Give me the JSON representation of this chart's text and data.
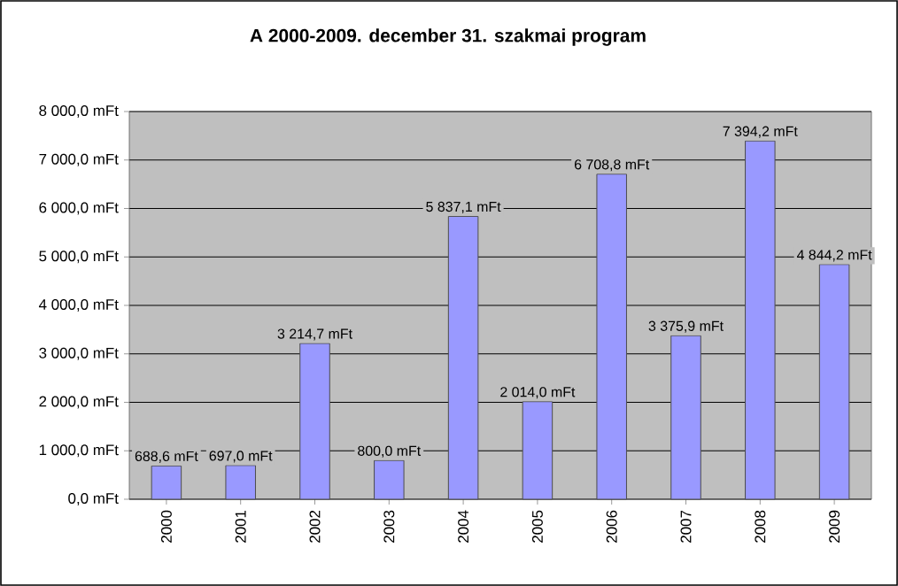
{
  "chart_data": {
    "type": "bar",
    "title": "A 2000-2009. december 31. szakmai program",
    "categories": [
      "2000",
      "2001",
      "2002",
      "2003",
      "2004",
      "2005",
      "2006",
      "2007",
      "2008",
      "2009"
    ],
    "values": [
      688.6,
      697.0,
      3214.7,
      800.0,
      5837.1,
      2014.0,
      6708.8,
      3375.9,
      7394.2,
      4844.2
    ],
    "value_labels": [
      "688,6 mFt",
      "697,0 mFt",
      "3 214,7 mFt",
      "800,0 mFt",
      "5 837,1 mFt",
      "2 014,0 mFt",
      "6 708,8 mFt",
      "3 375,9 mFt",
      "7 394,2 mFt",
      "4 844,2 mFt"
    ],
    "color": "#9999ff",
    "ylim": [
      0,
      8000
    ],
    "yticks": [
      {
        "value": 0,
        "label": "0,0 mFt"
      },
      {
        "value": 1000,
        "label": "1 000,0 mFt"
      },
      {
        "value": 2000,
        "label": "2 000,0 mFt"
      },
      {
        "value": 3000,
        "label": "3 000,0 mFt"
      },
      {
        "value": 4000,
        "label": "4 000,0 mFt"
      },
      {
        "value": 5000,
        "label": "5 000,0 mFt"
      },
      {
        "value": 6000,
        "label": "6 000,0 mFt"
      },
      {
        "value": 7000,
        "label": "7 000,0 mFt"
      },
      {
        "value": 8000,
        "label": "8 000,0 mFt"
      }
    ],
    "grid": "y"
  }
}
